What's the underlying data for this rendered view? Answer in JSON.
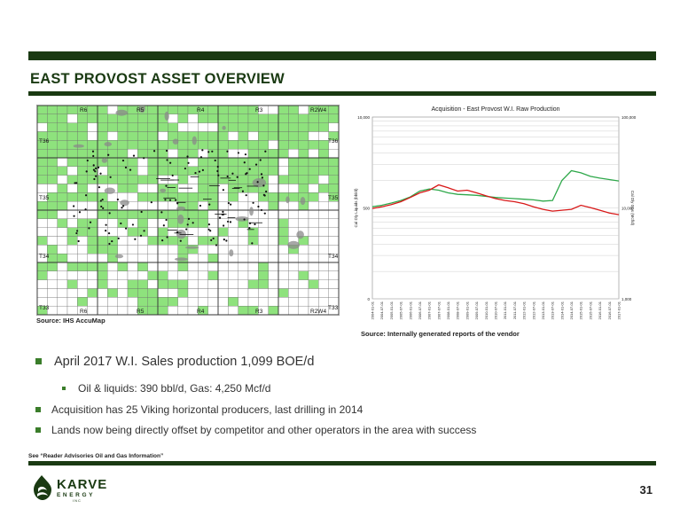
{
  "slide": {
    "title": "EAST PROVOST ASSET OVERVIEW",
    "page_number": "31",
    "advisory": "See “Reader Advisories Oil and Gas Information”"
  },
  "map": {
    "range_labels_top": [
      "R6",
      "R5",
      "R4",
      "R3",
      "R2W4"
    ],
    "range_labels_bottom": [
      "R6",
      "R5",
      "R4",
      "R3",
      "R2W4"
    ],
    "township_labels_left": [
      "T36",
      "T35",
      "T34",
      "T33"
    ],
    "township_labels_right": [
      "T36",
      "T35",
      "T34",
      "T33"
    ],
    "source": "Source: IHS AccuMap"
  },
  "chart_source": "Source: Internally generated reports of the vendor",
  "chart_data": {
    "type": "line",
    "title": "Acquisition - East Provost W.I. Raw Production",
    "ylabel_left": "Cal Dly Liquids (bbl/d)",
    "ylabel_right": "Cal Dly Gas (Mcf/d)",
    "y_left_ticks": [
      "10,000",
      "500",
      "0"
    ],
    "y_right_ticks": [
      "100,000",
      "10,000",
      "1,000"
    ],
    "y_left_scale": "log",
    "x": [
      "2004-01-01",
      "2004-07-01",
      "2005-01-01",
      "2005-07-01",
      "2006-01-01",
      "2006-07-01",
      "2007-01-01",
      "2007-07-01",
      "2008-01-01",
      "2008-07-01",
      "2009-01-01",
      "2009-07-01",
      "2010-01-01",
      "2010-07-01",
      "2011-01-01",
      "2011-07-01",
      "2012-01-01",
      "2012-07-01",
      "2013-01-01",
      "2013-07-01",
      "2014-01-01",
      "2014-07-01",
      "2015-01-01",
      "2015-07-01",
      "2016-01-01",
      "2016-07-01",
      "2017-01-01"
    ],
    "series": [
      {
        "name": "",
        "color": "#2ea84a",
        "values": [
          330,
          350,
          380,
          420,
          480,
          600,
          650,
          620,
          560,
          530,
          520,
          510,
          490,
          470,
          460,
          450,
          440,
          430,
          410,
          420,
          900,
          1300,
          1200,
          1050,
          980,
          930,
          880
        ]
      },
      {
        "name": "",
        "color": "#d81818",
        "values": [
          310,
          330,
          360,
          400,
          470,
          560,
          620,
          760,
          680,
          600,
          620,
          560,
          500,
          450,
          420,
          400,
          370,
          330,
          300,
          280,
          290,
          300,
          350,
          320,
          290,
          260,
          245
        ]
      }
    ]
  },
  "bullets": [
    {
      "level": 1,
      "size": "large",
      "text": "April 2017 W.I. Sales production 1,099 BOE/d"
    },
    {
      "level": 2,
      "size": "small",
      "text": "Oil & liquids: 390 bbl/d, Gas: 4,250 Mcf/d"
    },
    {
      "level": 1,
      "size": "small",
      "text": "Acquisition has 25 Viking horizontal producers, last drilling in 2014"
    },
    {
      "level": 1,
      "size": "small",
      "text": "Lands now being directly offset by competitor and other operators in the area with success"
    }
  ],
  "logo": {
    "name": "KARVE",
    "sub": "ENERGY",
    "inc": "INC"
  },
  "colors": {
    "brand_dark": "#1a3a12",
    "bullet_green": "#3a7d2a",
    "land_green": "#8ee27d"
  }
}
